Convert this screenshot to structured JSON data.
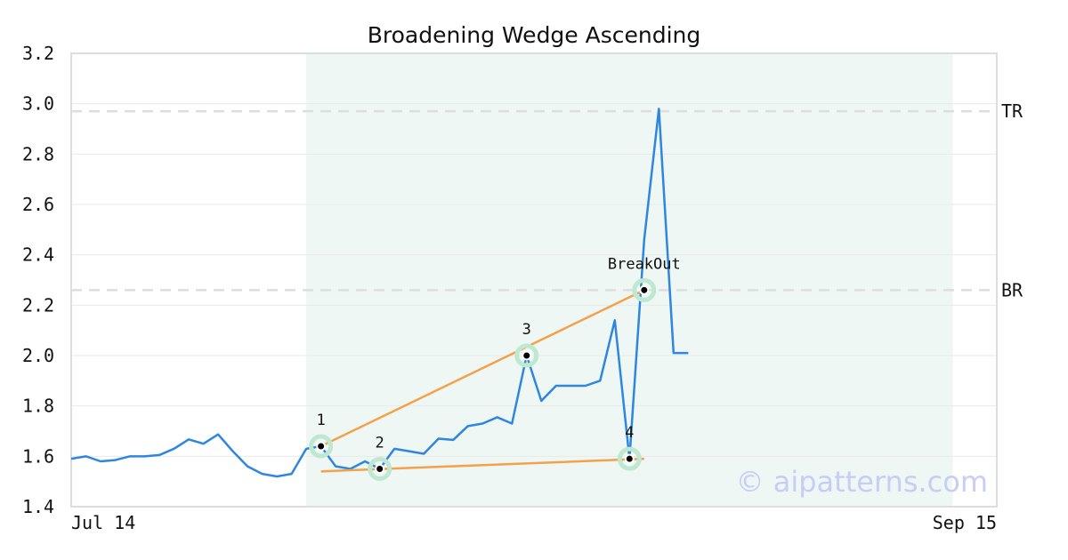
{
  "chart_data": {
    "type": "line",
    "title": "Broadening Wedge Ascending",
    "xlabel": "",
    "ylabel": "",
    "ylim": [
      1.4,
      3.2
    ],
    "yticks": [
      "1.4",
      "1.6",
      "1.8",
      "2.0",
      "2.2",
      "2.4",
      "2.6",
      "2.8",
      "3.0",
      "3.2"
    ],
    "xlim": [
      "2014-07-14",
      "2014-09-15"
    ],
    "xtick_labels": [
      {
        "date": "2014-07-14",
        "label": "Jul 14"
      },
      {
        "date": "2014-09-15",
        "label": "Sep 15"
      }
    ],
    "grid": true,
    "colors": {
      "price": "#2f86e0",
      "trendline": "#f3a14a",
      "highlight": "#eef7f3",
      "reference": "#dddddd",
      "marker_halo": "#bfe8d1",
      "axis": "#dddddd"
    },
    "pattern_region": [
      "2014-07-30",
      "2014-09-12"
    ],
    "series": [
      {
        "points": [
          [
            "2014-07-14",
            1.59
          ],
          [
            "2014-07-15",
            1.6
          ],
          [
            "2014-07-16",
            1.58
          ],
          [
            "2014-07-17",
            1.585
          ],
          [
            "2014-07-18",
            1.6
          ],
          [
            "2014-07-19",
            1.6
          ],
          [
            "2014-07-20",
            1.605
          ],
          [
            "2014-07-21",
            1.63
          ],
          [
            "2014-07-22",
            1.667
          ],
          [
            "2014-07-23",
            1.65
          ],
          [
            "2014-07-24",
            1.687
          ],
          [
            "2014-07-25",
            1.62
          ],
          [
            "2014-07-26",
            1.56
          ],
          [
            "2014-07-27",
            1.53
          ],
          [
            "2014-07-28",
            1.52
          ],
          [
            "2014-07-29",
            1.53
          ],
          [
            "2014-07-30",
            1.63
          ],
          [
            "2014-07-31",
            1.64
          ],
          [
            "2014-08-01",
            1.56
          ],
          [
            "2014-08-02",
            1.55
          ],
          [
            "2014-08-03",
            1.58
          ],
          [
            "2014-08-04",
            1.55
          ],
          [
            "2014-08-05",
            1.63
          ],
          [
            "2014-08-06",
            1.62
          ],
          [
            "2014-08-07",
            1.61
          ],
          [
            "2014-08-08",
            1.67
          ],
          [
            "2014-08-09",
            1.665
          ],
          [
            "2014-08-10",
            1.72
          ],
          [
            "2014-08-11",
            1.73
          ],
          [
            "2014-08-12",
            1.755
          ],
          [
            "2014-08-13",
            1.73
          ],
          [
            "2014-08-14",
            2.0
          ],
          [
            "2014-08-15",
            1.82
          ],
          [
            "2014-08-16",
            1.88
          ],
          [
            "2014-08-17",
            1.88
          ],
          [
            "2014-08-18",
            1.88
          ],
          [
            "2014-08-19",
            1.9
          ],
          [
            "2014-08-20",
            2.14
          ],
          [
            "2014-08-21",
            1.59
          ],
          [
            "2014-08-22",
            2.46
          ],
          [
            "2014-08-23",
            2.98
          ],
          [
            "2014-08-24",
            2.01
          ],
          [
            "2014-08-25",
            2.01
          ]
        ]
      }
    ],
    "reference_lines": [
      {
        "label": "TR",
        "y": 2.97
      },
      {
        "label": "BR",
        "y": 2.26
      }
    ],
    "trendlines": [
      {
        "x1": "2014-07-31",
        "y1": 1.64,
        "x2": "2014-08-22",
        "y2": 2.26
      },
      {
        "x1": "2014-07-31",
        "y1": 1.54,
        "x2": "2014-08-22",
        "y2": 1.59
      }
    ],
    "markers": [
      {
        "label": "1",
        "x": "2014-07-31",
        "y": 1.64
      },
      {
        "label": "2",
        "x": "2014-08-04",
        "y": 1.55
      },
      {
        "label": "3",
        "x": "2014-08-14",
        "y": 2.0
      },
      {
        "label": "4",
        "x": "2014-08-21",
        "y": 1.59
      },
      {
        "label": "BreakOut",
        "x": "2014-08-22",
        "y": 2.26
      }
    ],
    "watermark": "© aipatterns.com"
  }
}
